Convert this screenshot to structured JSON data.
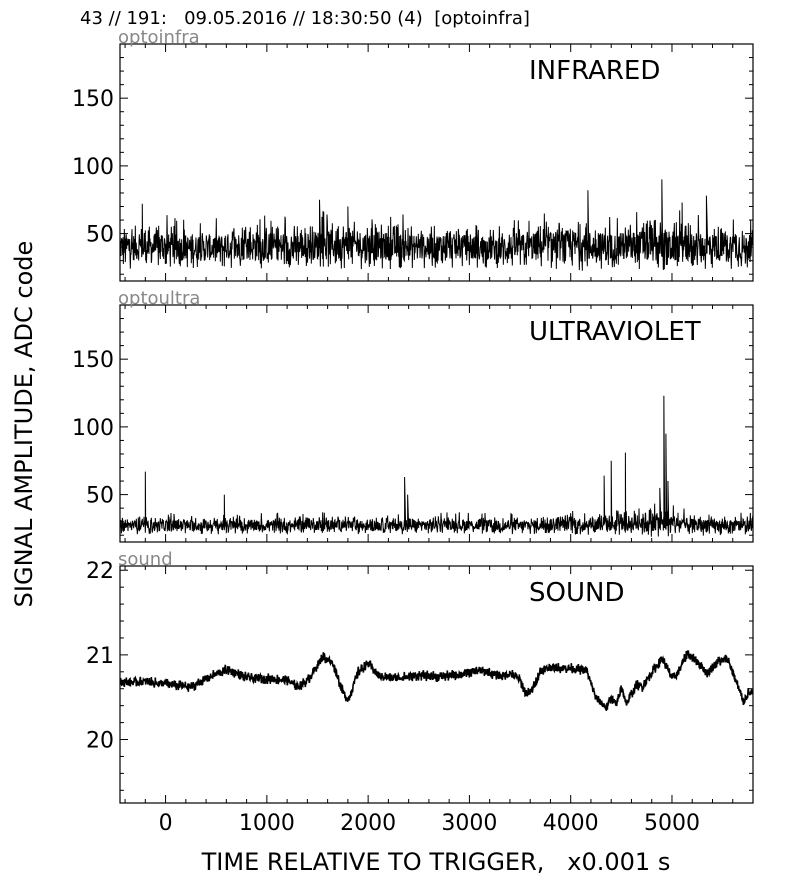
{
  "header": {
    "title": "43 // 191:   09.05.2016 // 18:30:50 (4)  [optoinfra]"
  },
  "chart_data": [
    {
      "type": "line",
      "channel": "optoinfra",
      "title": "INFRARED",
      "xlim": [
        -450,
        5800
      ],
      "ylim": [
        15,
        190
      ],
      "yticks": [
        50,
        100,
        150
      ],
      "grid": false,
      "color": "#000000",
      "x": [
        -400,
        0,
        400,
        800,
        1200,
        1600,
        2000,
        2400,
        2800,
        3200,
        3600,
        4000,
        4400,
        4800,
        5200,
        5600,
        5750
      ],
      "y": [
        40,
        40,
        39,
        41,
        40,
        42,
        41,
        40,
        40,
        39,
        40,
        41,
        40,
        41,
        40,
        40,
        39
      ],
      "spread": [
        10,
        10,
        9,
        11,
        10,
        11,
        11,
        10,
        10,
        9,
        10,
        12,
        10,
        12,
        11,
        10,
        10
      ],
      "peaks": [
        [
          -230,
          72
        ],
        [
          1520,
          75
        ],
        [
          1800,
          70
        ],
        [
          4170,
          82
        ],
        [
          4900,
          90
        ],
        [
          5100,
          73
        ],
        [
          5340,
          78
        ]
      ]
    },
    {
      "type": "line",
      "channel": "optoultra",
      "title": "ULTRAVIOLET",
      "xlim": [
        -450,
        5800
      ],
      "ylim": [
        15,
        190
      ],
      "yticks": [
        50,
        100,
        150
      ],
      "grid": false,
      "color": "#000000",
      "x": [
        -400,
        0,
        400,
        800,
        1200,
        1600,
        2000,
        2400,
        2800,
        3200,
        3600,
        4000,
        4400,
        4800,
        5200,
        5600,
        5750
      ],
      "y": [
        27,
        27,
        27,
        27,
        27,
        28,
        27,
        27,
        28,
        27,
        27,
        28,
        28,
        30,
        27,
        27,
        27
      ],
      "spread": [
        4,
        4,
        4,
        4,
        4,
        4,
        4,
        4,
        4,
        4,
        4,
        5,
        5,
        7,
        5,
        4,
        4
      ],
      "peaks": [
        [
          -200,
          67
        ],
        [
          580,
          50
        ],
        [
          2360,
          63
        ],
        [
          2390,
          50
        ],
        [
          4330,
          64
        ],
        [
          4400,
          75
        ],
        [
          4540,
          81
        ],
        [
          4880,
          55
        ],
        [
          4920,
          123
        ],
        [
          4940,
          95
        ],
        [
          4960,
          60
        ]
      ]
    },
    {
      "type": "line",
      "channel": "sound",
      "title": "SOUND",
      "xlim": [
        -450,
        5800
      ],
      "ylim": [
        19.25,
        22.05
      ],
      "yticks": [
        20,
        21,
        22
      ],
      "grid": false,
      "color": "#000000",
      "x": [
        -450,
        -200,
        0,
        100,
        250,
        400,
        600,
        800,
        1000,
        1200,
        1300,
        1400,
        1550,
        1650,
        1750,
        1800,
        1900,
        2000,
        2100,
        2300,
        2500,
        2700,
        2900,
        3100,
        3300,
        3400,
        3500,
        3550,
        3600,
        3700,
        3800,
        4000,
        4150,
        4250,
        4350,
        4400,
        4450,
        4500,
        4550,
        4600,
        4650,
        4700,
        4800,
        4900,
        5000,
        5050,
        5150,
        5250,
        5350,
        5450,
        5550,
        5650,
        5700,
        5750
      ],
      "y": [
        20.68,
        20.68,
        20.66,
        20.64,
        20.62,
        20.72,
        20.83,
        20.73,
        20.72,
        20.7,
        20.62,
        20.7,
        20.98,
        20.9,
        20.55,
        20.47,
        20.8,
        20.9,
        20.75,
        20.73,
        20.76,
        20.74,
        20.77,
        20.82,
        20.75,
        20.78,
        20.7,
        20.55,
        20.55,
        20.82,
        20.85,
        20.84,
        20.82,
        20.48,
        20.38,
        20.5,
        20.4,
        20.62,
        20.42,
        20.55,
        20.65,
        20.62,
        20.8,
        20.96,
        20.72,
        20.78,
        21.02,
        20.92,
        20.78,
        20.92,
        20.95,
        20.62,
        20.45,
        20.55
      ],
      "spread": [
        0.04,
        0.04,
        0.04,
        0.04,
        0.04,
        0.04,
        0.04,
        0.04,
        0.04,
        0.04,
        0.04,
        0.04,
        0.04,
        0.04,
        0.04,
        0.04,
        0.04,
        0.04,
        0.04,
        0.04,
        0.04,
        0.04,
        0.04,
        0.04,
        0.04,
        0.04,
        0.04,
        0.04,
        0.04,
        0.04,
        0.04,
        0.04,
        0.04,
        0.04,
        0.04,
        0.04,
        0.04,
        0.04,
        0.04,
        0.04,
        0.04,
        0.04,
        0.04,
        0.04,
        0.04,
        0.04,
        0.04,
        0.04,
        0.04,
        0.04,
        0.04,
        0.04,
        0.04,
        0.04
      ]
    }
  ],
  "axes": {
    "xlabel": "TIME RELATIVE TO TRIGGER,   x0.001 s",
    "ylabel": "SIGNAL AMPLITUDE,  ADC code",
    "xticks": [
      0,
      1000,
      2000,
      3000,
      4000,
      5000
    ]
  }
}
